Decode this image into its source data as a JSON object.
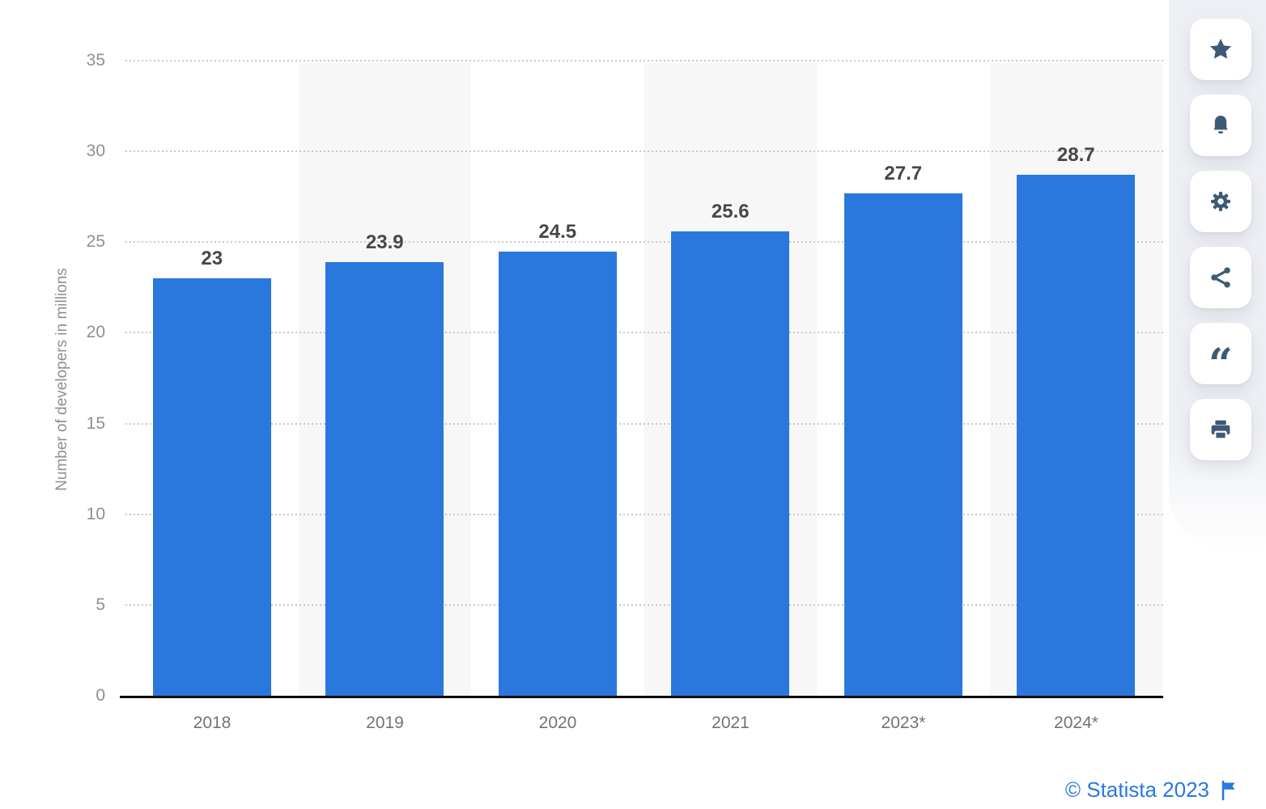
{
  "chart_data": {
    "type": "bar",
    "title": "",
    "xlabel": "",
    "ylabel": "Number of developers in millions",
    "categories": [
      "2018",
      "2019",
      "2020",
      "2021",
      "2023*",
      "2024*"
    ],
    "values": [
      23,
      23.9,
      24.5,
      25.6,
      27.7,
      28.7
    ],
    "value_labels": [
      "23",
      "23.9",
      "24.5",
      "25.6",
      "27.7",
      "28.7"
    ],
    "ylim": [
      0,
      35
    ],
    "yticks": [
      0,
      5,
      10,
      15,
      20,
      25,
      30,
      35
    ],
    "grid": "horizontal-dotted",
    "legend": "none",
    "bar_color": "#2a78dd",
    "stripe_color": "#f7f7f8",
    "striped_category_indexes": [
      1,
      3,
      5
    ],
    "gridline_color": "#c9c9c9",
    "axis_line_color": "#0b0b0b"
  },
  "sidebar": {
    "background_color": "#edeff4",
    "icon_color": "#3d5a76",
    "buttons": [
      {
        "icon": "star-icon"
      },
      {
        "icon": "bell-icon"
      },
      {
        "icon": "gear-icon"
      },
      {
        "icon": "share-icon"
      },
      {
        "icon": "quote-icon"
      },
      {
        "icon": "print-icon"
      }
    ]
  },
  "credit": {
    "text": "© Statista 2023",
    "color": "#2979dd",
    "flag_icon": "flag-icon"
  },
  "icons": {
    "quote_glyph": "“"
  }
}
